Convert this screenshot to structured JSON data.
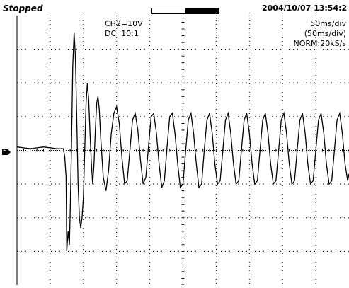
{
  "status": {
    "text": "Stopped"
  },
  "memory_bar": {
    "view_start": 0.5,
    "view_end": 1.0
  },
  "datetime": "2004/10/07  13:54:2",
  "channel": {
    "scale": "CH2=10V",
    "coupling": "DC  10:1",
    "marker": "2"
  },
  "timebase": {
    "time_div": "50ms/div",
    "time_div_paren": "(50ms/div)",
    "mode": "NORM:20kS/s"
  },
  "colors": {
    "trace": "#000000",
    "grid": "#000000",
    "background": "#ffffff"
  },
  "chart_data": {
    "type": "line",
    "grid": true,
    "xlim": [
      0,
      500
    ],
    "ylim": [
      -40,
      40
    ],
    "x_unit": "ms",
    "y_unit": "V",
    "series": [
      {
        "points": [
          [
            0,
            1
          ],
          [
            20,
            0.5
          ],
          [
            40,
            1
          ],
          [
            60,
            0.5
          ],
          [
            70,
            0.5
          ],
          [
            72,
            -2
          ],
          [
            74,
            -8
          ],
          [
            75,
            -30
          ],
          [
            77,
            -24
          ],
          [
            79,
            -28
          ],
          [
            80,
            -20
          ],
          [
            82,
            0
          ],
          [
            84,
            25
          ],
          [
            86,
            35
          ],
          [
            88,
            28
          ],
          [
            90,
            10
          ],
          [
            92,
            -10
          ],
          [
            94,
            -20
          ],
          [
            96,
            -23
          ],
          [
            98,
            -20
          ],
          [
            100,
            -14
          ],
          [
            102,
            0
          ],
          [
            104,
            14
          ],
          [
            106,
            20
          ],
          [
            108,
            15
          ],
          [
            110,
            5
          ],
          [
            112,
            -4
          ],
          [
            114,
            -10
          ],
          [
            116,
            -4
          ],
          [
            118,
            6
          ],
          [
            120,
            14
          ],
          [
            122,
            16
          ],
          [
            124,
            12
          ],
          [
            126,
            4
          ],
          [
            130,
            -8
          ],
          [
            134,
            -12
          ],
          [
            138,
            -6
          ],
          [
            142,
            5
          ],
          [
            146,
            11
          ],
          [
            150,
            13
          ],
          [
            154,
            8
          ],
          [
            158,
            -2
          ],
          [
            162,
            -10
          ],
          [
            166,
            -9
          ],
          [
            170,
            0
          ],
          [
            174,
            9
          ],
          [
            178,
            11
          ],
          [
            182,
            6
          ],
          [
            186,
            -3
          ],
          [
            190,
            -10
          ],
          [
            194,
            -8
          ],
          [
            198,
            1
          ],
          [
            202,
            10
          ],
          [
            206,
            11
          ],
          [
            210,
            5
          ],
          [
            214,
            -4
          ],
          [
            218,
            -11
          ],
          [
            222,
            -9
          ],
          [
            226,
            1
          ],
          [
            230,
            10
          ],
          [
            234,
            11
          ],
          [
            238,
            5
          ],
          [
            242,
            -4
          ],
          [
            246,
            -11
          ],
          [
            250,
            -10
          ],
          [
            254,
            0
          ],
          [
            258,
            9
          ],
          [
            262,
            11
          ],
          [
            266,
            5
          ],
          [
            270,
            -4
          ],
          [
            274,
            -11
          ],
          [
            278,
            -10
          ],
          [
            282,
            0
          ],
          [
            286,
            9
          ],
          [
            290,
            11
          ],
          [
            294,
            5
          ],
          [
            298,
            -4
          ],
          [
            302,
            -10
          ],
          [
            306,
            -9
          ],
          [
            310,
            0
          ],
          [
            314,
            9
          ],
          [
            318,
            11
          ],
          [
            322,
            5
          ],
          [
            326,
            -4
          ],
          [
            330,
            -10
          ],
          [
            334,
            -9
          ],
          [
            338,
            0
          ],
          [
            342,
            9
          ],
          [
            346,
            11
          ],
          [
            350,
            5
          ],
          [
            354,
            -4
          ],
          [
            358,
            -10
          ],
          [
            362,
            -9
          ],
          [
            366,
            0
          ],
          [
            370,
            9
          ],
          [
            374,
            11
          ],
          [
            378,
            5
          ],
          [
            382,
            -4
          ],
          [
            386,
            -10
          ],
          [
            390,
            -9
          ],
          [
            394,
            0
          ],
          [
            398,
            9
          ],
          [
            402,
            11
          ],
          [
            406,
            5
          ],
          [
            410,
            -4
          ],
          [
            414,
            -10
          ],
          [
            418,
            -9
          ],
          [
            422,
            0
          ],
          [
            426,
            9
          ],
          [
            430,
            11
          ],
          [
            434,
            5
          ],
          [
            438,
            -4
          ],
          [
            442,
            -10
          ],
          [
            446,
            -9
          ],
          [
            450,
            0
          ],
          [
            454,
            9
          ],
          [
            458,
            11
          ],
          [
            462,
            5
          ],
          [
            466,
            -4
          ],
          [
            470,
            -10
          ],
          [
            474,
            -9
          ],
          [
            478,
            0
          ],
          [
            482,
            9
          ],
          [
            486,
            11
          ],
          [
            490,
            5
          ],
          [
            494,
            -4
          ],
          [
            498,
            -9
          ],
          [
            500,
            -7
          ]
        ]
      }
    ]
  }
}
